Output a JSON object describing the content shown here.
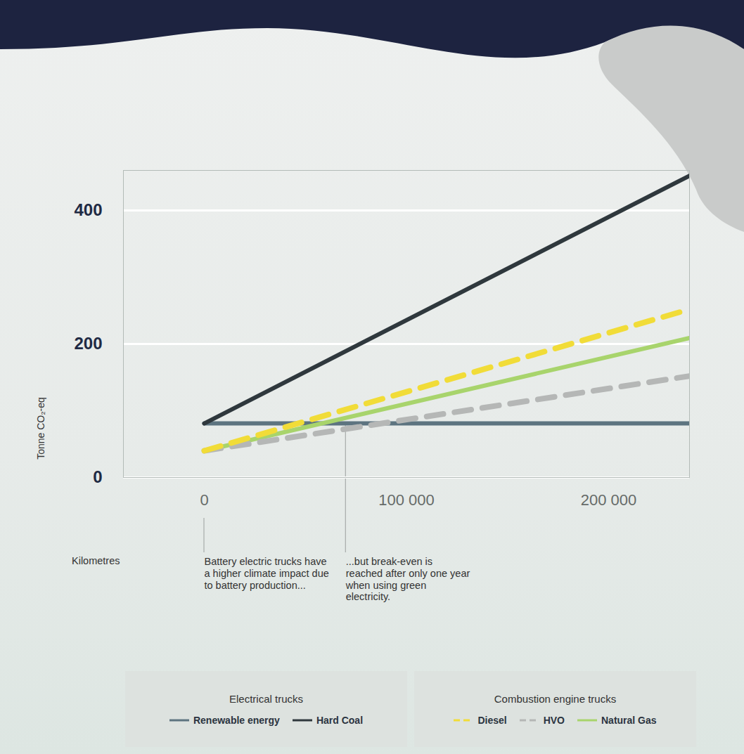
{
  "chart_data": {
    "type": "line",
    "x_label": "Kilometres",
    "y_label": "Tonne CO₂-eq",
    "xlim": [
      -40000,
      240000
    ],
    "xticks": [
      0,
      {
        "value": 100000,
        "label": "100 000"
      },
      {
        "value": 200000,
        "label": "200 000"
      }
    ],
    "ylim": [
      0,
      460
    ],
    "yticks": [
      0,
      200,
      400
    ],
    "grid": true,
    "x": [
      0,
      240000
    ],
    "series": [
      {
        "name": "Renewable energy",
        "color": "#5d7480",
        "line_style": "solid",
        "values": [
          81,
          81
        ]
      },
      {
        "name": "Hard Coal",
        "color": "#2f383d",
        "line_style": "solid",
        "values": [
          81,
          452
        ]
      },
      {
        "name": "Natural Gas",
        "color": "#a8d46c",
        "line_style": "solid",
        "values": [
          40,
          209
        ]
      },
      {
        "name": "HVO",
        "color": "#b5b7b6",
        "line_style": "dashed",
        "values": [
          40,
          152
        ]
      },
      {
        "name": "Diesel",
        "color": "#f1dc38",
        "line_style": "dashed",
        "values": [
          40,
          252
        ]
      }
    ],
    "legend": "bottom",
    "legend_groups": [
      {
        "title": "Electrical trucks",
        "series": [
          "Renewable energy",
          "Hard Coal"
        ]
      },
      {
        "title": "Combustion engine trucks",
        "series": [
          "Diesel",
          "HVO",
          "Natural Gas"
        ]
      }
    ],
    "annotations": [
      {
        "x": 0,
        "text": "Battery electric trucks have a higher climate impact due to battery production..."
      },
      {
        "x": 70000,
        "text": "...but break-even is reached after only one year when using green electricity."
      }
    ]
  }
}
